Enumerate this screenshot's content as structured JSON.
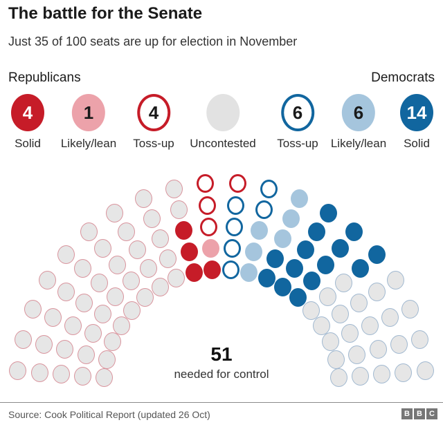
{
  "title": "The battle for the Senate",
  "subtitle": "Just 35 of 100 seats are up for election in November",
  "legend": {
    "republicans_label": "Republicans",
    "democrats_label": "Democrats",
    "items": [
      {
        "key": "rep-solid",
        "count": "4",
        "label": "Solid",
        "fill": "#c61c28",
        "text": "#ffffff",
        "outline": ""
      },
      {
        "key": "rep-likely-lean",
        "count": "1",
        "label": "Likely/lean",
        "fill": "#eca2aa",
        "text": "#1a1a1a",
        "outline": ""
      },
      {
        "key": "rep-tossup",
        "count": "4",
        "label": "Toss-up",
        "fill": "#ffffff",
        "text": "#1a1a1a",
        "outline": "#c61c28"
      },
      {
        "key": "uncontested",
        "count": "",
        "label": "Uncontested",
        "fill": "#e2e2e2",
        "text": "#1a1a1a",
        "outline": ""
      },
      {
        "key": "dem-tossup",
        "count": "6",
        "label": "Toss-up",
        "fill": "#ffffff",
        "text": "#1a1a1a",
        "outline": "#11669f"
      },
      {
        "key": "dem-likely-lean",
        "count": "6",
        "label": "Likely/lean",
        "fill": "#a5c5dd",
        "text": "#1a1a1a",
        "outline": ""
      },
      {
        "key": "dem-solid",
        "count": "14",
        "label": "Solid",
        "fill": "#11669f",
        "text": "#ffffff",
        "outline": ""
      }
    ]
  },
  "chart_data": {
    "type": "parliament",
    "title": "US Senate seats hemicycle",
    "total_seats": 100,
    "rings": 5,
    "spokes": 20,
    "majority_value": "51",
    "majority_label": "needed for control",
    "counts": {
      "rep_not_up_for_election": 42,
      "rep_solid": 4,
      "rep_likely_lean": 1,
      "rep_tossup": 4,
      "dem_tossup": 6,
      "dem_likely_lean": 6,
      "dem_solid": 14,
      "dem_not_up_for_election": 23
    },
    "categories": {
      "N": {
        "name": "Republican not up for election",
        "fill": "#e6e6e6",
        "border": "#d9939c"
      },
      "S": {
        "name": "Republican solid",
        "fill": "#c61c28",
        "border": "#c61c28"
      },
      "L": {
        "name": "Republican likely-lean",
        "fill": "#eca2aa",
        "border": "#eca2aa"
      },
      "T": {
        "name": "Republican toss-up",
        "fill": "#ffffff",
        "border": "#c61c28"
      },
      "t": {
        "name": "Democrat toss-up",
        "fill": "#ffffff",
        "border": "#11669f"
      },
      "l": {
        "name": "Democrat likely-lean",
        "fill": "#a5c5dd",
        "border": "#a5c5dd"
      },
      "s": {
        "name": "Democrat solid",
        "fill": "#11669f",
        "border": "#11669f"
      },
      "n": {
        "name": "Democrat not up for election",
        "fill": "#e6e6e6",
        "border": "#a0b8d0"
      }
    },
    "spoke_cells_outer_to_inner": [
      "NNNNN",
      "NNNNN",
      "NNNNN",
      "NNNNN",
      "NNNNN",
      "NNNNN",
      "NNNNN",
      "NNNNN",
      "NNSSS",
      "TTTLS",
      "Ttttt",
      "ttlll",
      "lllss",
      "sssss",
      "sssss",
      "ssnnn",
      "nnnnn",
      "nnnnn",
      "nnnnn",
      "nnnnn"
    ]
  },
  "footer": {
    "source": "Source: Cook Political Report (updated 26 Oct)",
    "logo_letters": [
      "B",
      "B",
      "C"
    ]
  }
}
